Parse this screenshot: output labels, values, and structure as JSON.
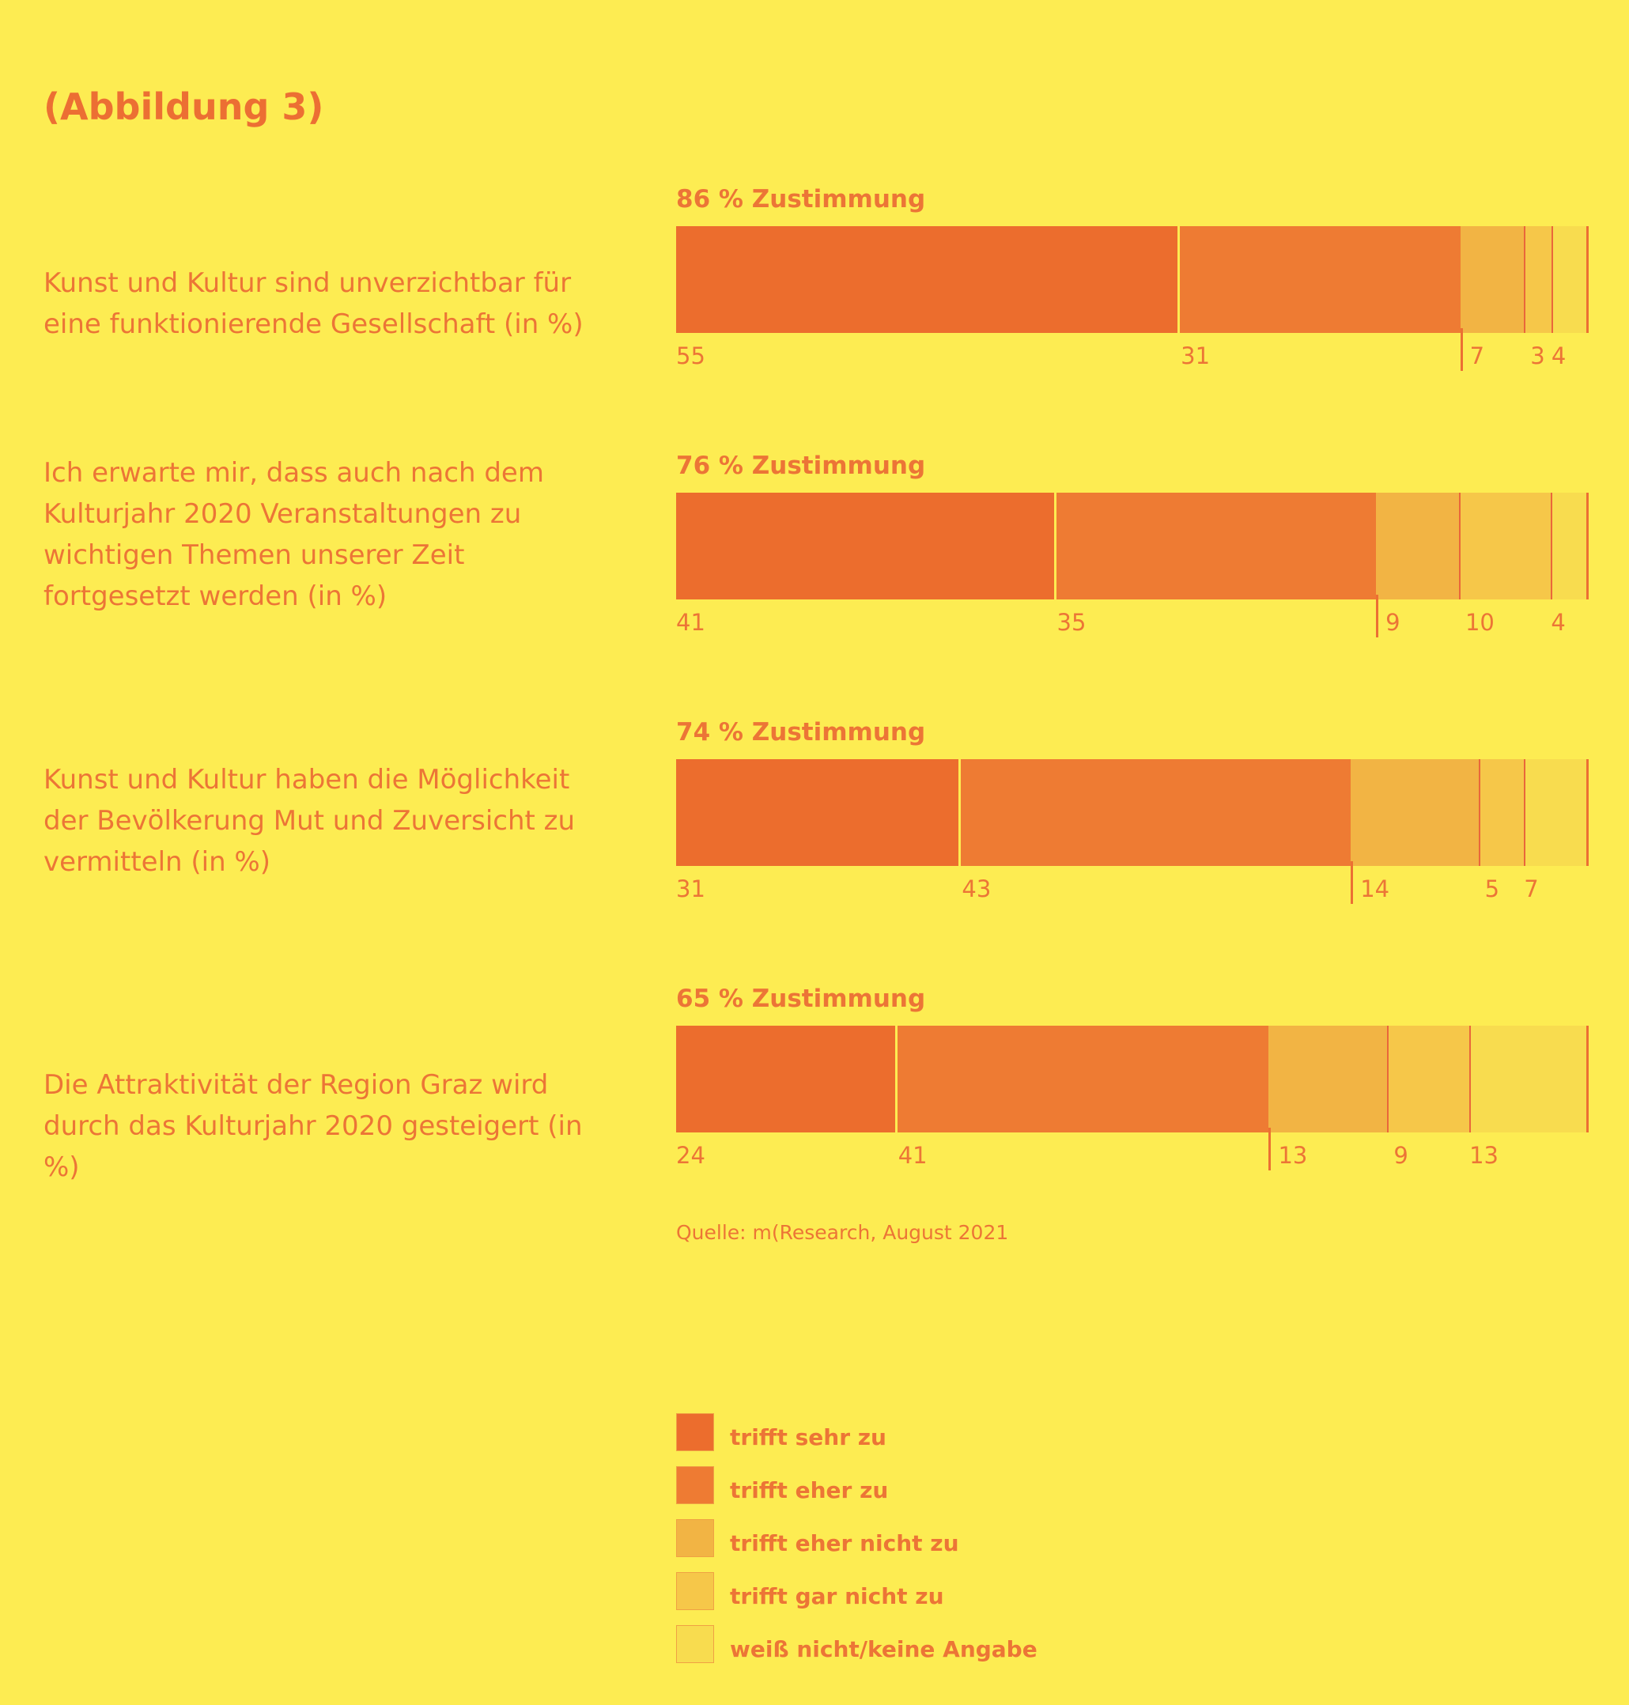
{
  "title": "(Abbildung 3)",
  "source": "Quelle: m(Research, August 2021",
  "colors": {
    "background": "#fdec52",
    "text": "#ec7536",
    "categories": [
      "#ec6d2d",
      "#ee7b33",
      "#f2b444",
      "#f6c749",
      "#f8dc4f"
    ],
    "divider": "#fdec52",
    "edge": "#e9673a"
  },
  "chart_data": {
    "type": "bar",
    "orientation": "horizontal-stacked",
    "unit": "%",
    "categories": [
      "trifft sehr zu",
      "trifft eher zu",
      "trifft eher nicht zu",
      "trifft gar nicht zu",
      "weiß nicht/keine Angabe"
    ],
    "rows": [
      {
        "question": "Kunst und Kultur sind unverzichtbar für eine funktionierende Gesellschaft (in %)",
        "agreement": "86 % Zustimmung",
        "values": [
          55,
          31,
          7,
          3,
          4
        ],
        "labels": [
          "55",
          "31",
          "7",
          "3",
          "4"
        ]
      },
      {
        "question": "Ich erwarte mir, dass auch nach dem Kulturjahr 2020 Veranstaltungen zu wichtigen Themen unserer Zeit fortgesetzt werden (in %)",
        "agreement": "76 % Zustimmung",
        "values": [
          41,
          35,
          9,
          10,
          4
        ],
        "labels": [
          "41",
          "35",
          "9",
          "10",
          "4"
        ]
      },
      {
        "question": "Kunst und Kultur haben die Möglichkeit der Bevölkerung Mut und Zuversicht zu vermitteln (in %)",
        "agreement": "74 % Zustimmung",
        "values": [
          31,
          43,
          14,
          5,
          7
        ],
        "labels": [
          "31",
          "43",
          "14",
          "5",
          "7"
        ]
      },
      {
        "question": "Die Attraktivität der Region Graz wird durch das Kulturjahr 2020 gesteigert (in %)",
        "agreement": "65 % Zustimmung",
        "values": [
          24,
          41,
          13,
          9,
          13
        ],
        "labels": [
          "24",
          "41",
          "13",
          "9",
          "13"
        ]
      }
    ],
    "legend": [
      "trifft sehr zu",
      "trifft eher zu",
      "trifft eher nicht zu",
      "trifft gar nicht zu",
      "weiß nicht/keine Angabe"
    ],
    "legend_position": "bottom"
  }
}
